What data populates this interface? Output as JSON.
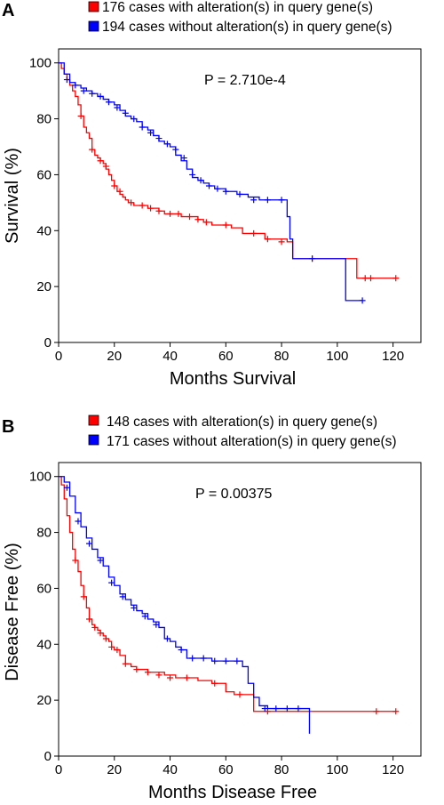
{
  "chart_data": [
    {
      "type": "line",
      "subtype": "kaplan-meier",
      "panel_label": "A",
      "annotation": "P = 2.710e-4",
      "xlabel": "Months Survival",
      "ylabel": "Survival (%)",
      "xlim": [
        0,
        130
      ],
      "ylim": [
        0,
        105
      ],
      "xticks": [
        0,
        20,
        40,
        60,
        80,
        100,
        120
      ],
      "yticks": [
        0,
        20,
        40,
        60,
        80,
        100
      ],
      "legend_position": "top-right",
      "series": [
        {
          "name": "176 cases with alteration(s) in query gene(s)",
          "color": "#ff0000",
          "x": [
            0,
            1,
            2,
            3,
            4,
            5,
            6,
            7,
            8,
            9,
            10,
            11,
            12,
            13,
            14,
            15,
            16,
            17,
            18,
            19,
            20,
            21,
            22,
            23,
            24,
            25,
            26,
            27,
            28,
            30,
            32,
            34,
            36,
            38,
            40,
            42,
            44,
            46,
            48,
            50,
            52,
            55,
            60,
            62,
            66,
            70,
            74,
            78,
            82,
            84,
            90,
            98,
            107,
            110,
            112,
            121
          ],
          "y": [
            100,
            98,
            96,
            94,
            92,
            90,
            88,
            85,
            81,
            77,
            75,
            73,
            69,
            67,
            66,
            65,
            64,
            62,
            60,
            58,
            56,
            54,
            53,
            52,
            51,
            50,
            50,
            49,
            49,
            49,
            48,
            48,
            47,
            46,
            46,
            46,
            45,
            45,
            45,
            44,
            43,
            42,
            42,
            41,
            39,
            39,
            37,
            37,
            36,
            30,
            30,
            30,
            23,
            23,
            23,
            23
          ],
          "censored_x": [
            8,
            12,
            15,
            17,
            20,
            22,
            26,
            30,
            33,
            36,
            40,
            43,
            47,
            50,
            53,
            60,
            70,
            75,
            80,
            91,
            110,
            112,
            121
          ],
          "censored_y": [
            81,
            69,
            65,
            63,
            56,
            54,
            50,
            49,
            48,
            47,
            46,
            46,
            45,
            44,
            43,
            42,
            39,
            37,
            36,
            30,
            23,
            23,
            23
          ]
        },
        {
          "name": "194 cases without alteration(s) in query gene(s)",
          "color": "#0000ff",
          "x": [
            0,
            2,
            4,
            6,
            8,
            10,
            12,
            14,
            16,
            18,
            20,
            22,
            24,
            26,
            28,
            30,
            32,
            34,
            36,
            38,
            40,
            42,
            44,
            46,
            48,
            50,
            52,
            54,
            56,
            58,
            60,
            64,
            68,
            72,
            76,
            80,
            82,
            83,
            84,
            90,
            98,
            103,
            106,
            109
          ],
          "y": [
            100,
            96,
            93,
            92,
            91,
            90,
            89,
            88,
            87,
            86,
            85,
            83,
            81,
            80,
            79,
            77,
            76,
            74,
            72,
            71,
            70,
            67,
            65,
            62,
            59,
            58,
            57,
            56,
            55,
            55,
            54,
            53,
            52,
            51,
            51,
            51,
            45,
            37,
            30,
            30,
            30,
            15,
            15,
            15
          ],
          "censored_x": [
            3,
            6,
            9,
            12,
            15,
            18,
            21,
            24,
            27,
            30,
            33,
            36,
            39,
            42,
            45,
            48,
            51,
            54,
            57,
            60,
            65,
            70,
            75,
            80,
            91,
            109
          ],
          "censored_y": [
            94,
            92,
            90,
            89,
            88,
            86,
            84,
            82,
            80,
            77,
            75,
            73,
            71,
            69,
            66,
            60,
            58,
            56,
            55,
            54,
            53,
            51,
            51,
            51,
            30,
            15
          ]
        }
      ]
    },
    {
      "type": "line",
      "subtype": "kaplan-meier",
      "panel_label": "B",
      "annotation": "P = 0.00375",
      "xlabel": "Months Disease Free",
      "ylabel": "Disease Free (%)",
      "xlim": [
        0,
        130
      ],
      "ylim": [
        0,
        105
      ],
      "xticks": [
        0,
        20,
        40,
        60,
        80,
        100,
        120
      ],
      "yticks": [
        0,
        20,
        40,
        60,
        80,
        100
      ],
      "legend_position": "top-right",
      "series": [
        {
          "name": "148 cases with alteration(s) in query gene(s)",
          "color": "#ff0000",
          "x": [
            0,
            1,
            2,
            3,
            4,
            5,
            6,
            7,
            8,
            9,
            10,
            11,
            12,
            13,
            14,
            15,
            16,
            17,
            18,
            19,
            20,
            22,
            24,
            26,
            28,
            30,
            32,
            35,
            38,
            42,
            45,
            50,
            55,
            60,
            63,
            70,
            80,
            90,
            100,
            110,
            121
          ],
          "y": [
            100,
            97,
            92,
            86,
            80,
            74,
            70,
            66,
            61,
            57,
            53,
            49,
            47,
            46,
            45,
            44,
            43,
            42,
            41,
            39,
            38,
            36,
            33,
            32,
            31,
            31,
            30,
            30,
            29,
            28,
            28,
            27,
            26,
            23,
            22,
            16,
            16,
            16,
            16,
            16,
            16
          ],
          "censored_x": [
            6,
            9,
            11,
            13,
            15,
            17,
            19,
            21,
            24,
            28,
            32,
            36,
            40,
            46,
            56,
            65,
            75,
            114,
            121
          ],
          "censored_y": [
            70,
            57,
            49,
            46,
            44,
            42,
            39,
            38,
            33,
            31,
            30,
            29,
            28,
            28,
            26,
            22,
            16,
            16,
            16
          ]
        },
        {
          "name": "171 cases without alteration(s) in query gene(s)",
          "color": "#0000ff",
          "x": [
            0,
            2,
            4,
            6,
            8,
            10,
            12,
            14,
            16,
            18,
            20,
            22,
            24,
            26,
            28,
            30,
            32,
            34,
            36,
            38,
            40,
            42,
            44,
            46,
            50,
            55,
            60,
            65,
            66,
            68,
            70,
            72,
            75,
            80,
            85,
            90
          ],
          "y": [
            100,
            98,
            93,
            87,
            82,
            78,
            74,
            71,
            68,
            64,
            61,
            58,
            56,
            54,
            52,
            51,
            49,
            48,
            46,
            42,
            41,
            39,
            38,
            35,
            35,
            34,
            34,
            34,
            32,
            26,
            21,
            18,
            17,
            17,
            17,
            8
          ],
          "censored_x": [
            3,
            7,
            11,
            15,
            19,
            23,
            27,
            31,
            35,
            39,
            44,
            48,
            52,
            56,
            60,
            64,
            74,
            78,
            82,
            86
          ],
          "censored_y": [
            96,
            84,
            76,
            70,
            62,
            57,
            53,
            50,
            47,
            42,
            38,
            35,
            35,
            34,
            34,
            34,
            17,
            17,
            17,
            17
          ]
        }
      ]
    }
  ]
}
